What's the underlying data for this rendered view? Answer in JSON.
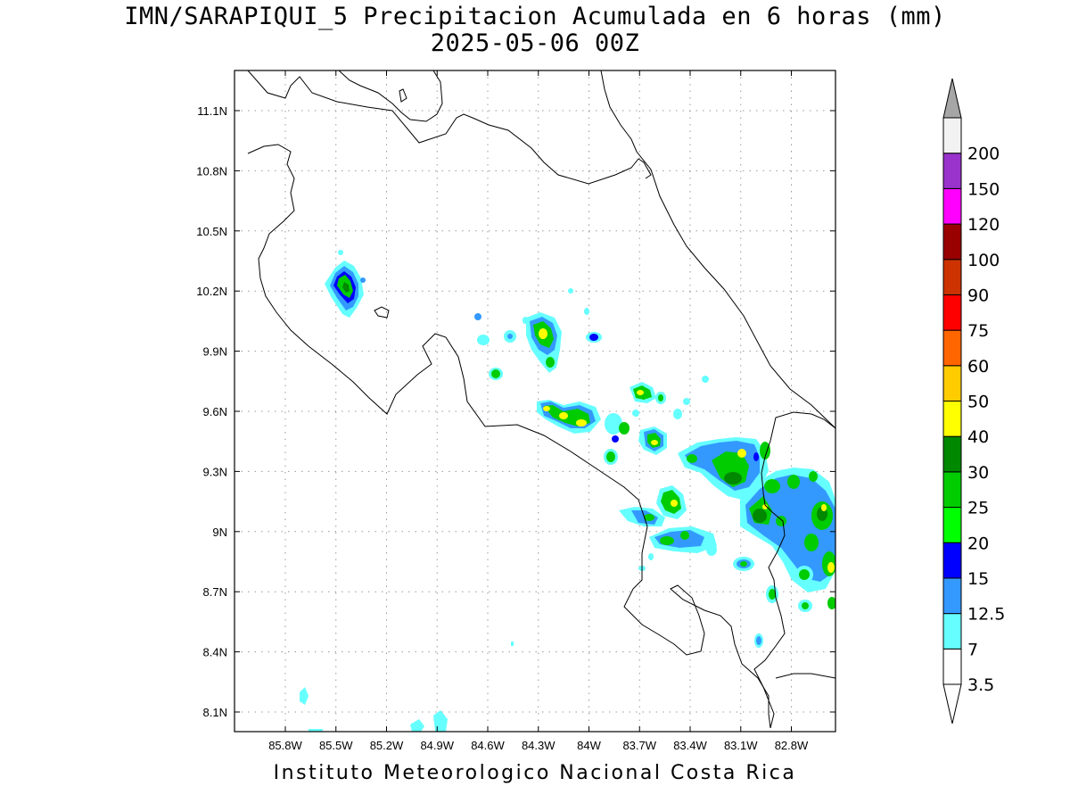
{
  "header": {
    "title": "IMN/SARAPIQUI_5 Precipitacion Acumulada en 6 horas (mm)",
    "subtitle": "2025-05-06 00Z"
  },
  "footer": {
    "credit": "Instituto Meteorologico Nacional Costa Rica"
  },
  "map": {
    "lon_ticks": [
      "85.8W",
      "85.5W",
      "85.2W",
      "84.9W",
      "84.6W",
      "84.3W",
      "84W",
      "83.7W",
      "83.4W",
      "83.1W",
      "82.8W"
    ],
    "lat_ticks": [
      "11.1N",
      "10.8N",
      "10.5N",
      "10.2N",
      "9.9N",
      "9.6N",
      "9.3N",
      "9N",
      "8.7N",
      "8.4N",
      "8.1N"
    ],
    "grid": true
  },
  "colorbar": {
    "labels": [
      "3.5",
      "7",
      "12.5",
      "15",
      "20",
      "25",
      "30",
      "40",
      "50",
      "60",
      "75",
      "90",
      "100",
      "120",
      "150",
      "200"
    ],
    "colors": [
      "#ffffff",
      "#66ffff",
      "#3399ff",
      "#0000ff",
      "#00ff00",
      "#00cc00",
      "#008800",
      "#ffff00",
      "#ffcc00",
      "#ff6600",
      "#ff0000",
      "#cc3300",
      "#990000",
      "#ff00ff",
      "#9933cc",
      "#f2f2f2"
    ],
    "top_arrow_color": "#a6a6a6",
    "bottom_arrow_color": "#ffffff"
  }
}
